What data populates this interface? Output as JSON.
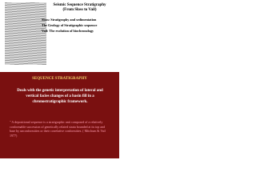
{
  "slide1": {
    "title": [
      "Seismic Sequence Stratigraphy",
      "(From Sloss to Vail)"
    ],
    "items": [
      "Sloss: Stratigraphy and sedimentation",
      "The Geology of Stratigraphic sequence",
      "Vail: The evolution of biochronology"
    ]
  },
  "slide2": {
    "heading": "SEQUENCE STRATIGRAPHY",
    "text": "Deals with the genetic interpretation of lateral and vertical facies changes of a basin fill in a chronostratigraphic framework.",
    "quote": "\" A depositional sequence is a stratigraphic unit composed of a relatively conformable succession of genetically related strata bounded at its top and base by unconformities or their correlative conformities. ( Mitchum & Vail 1977)"
  }
}
